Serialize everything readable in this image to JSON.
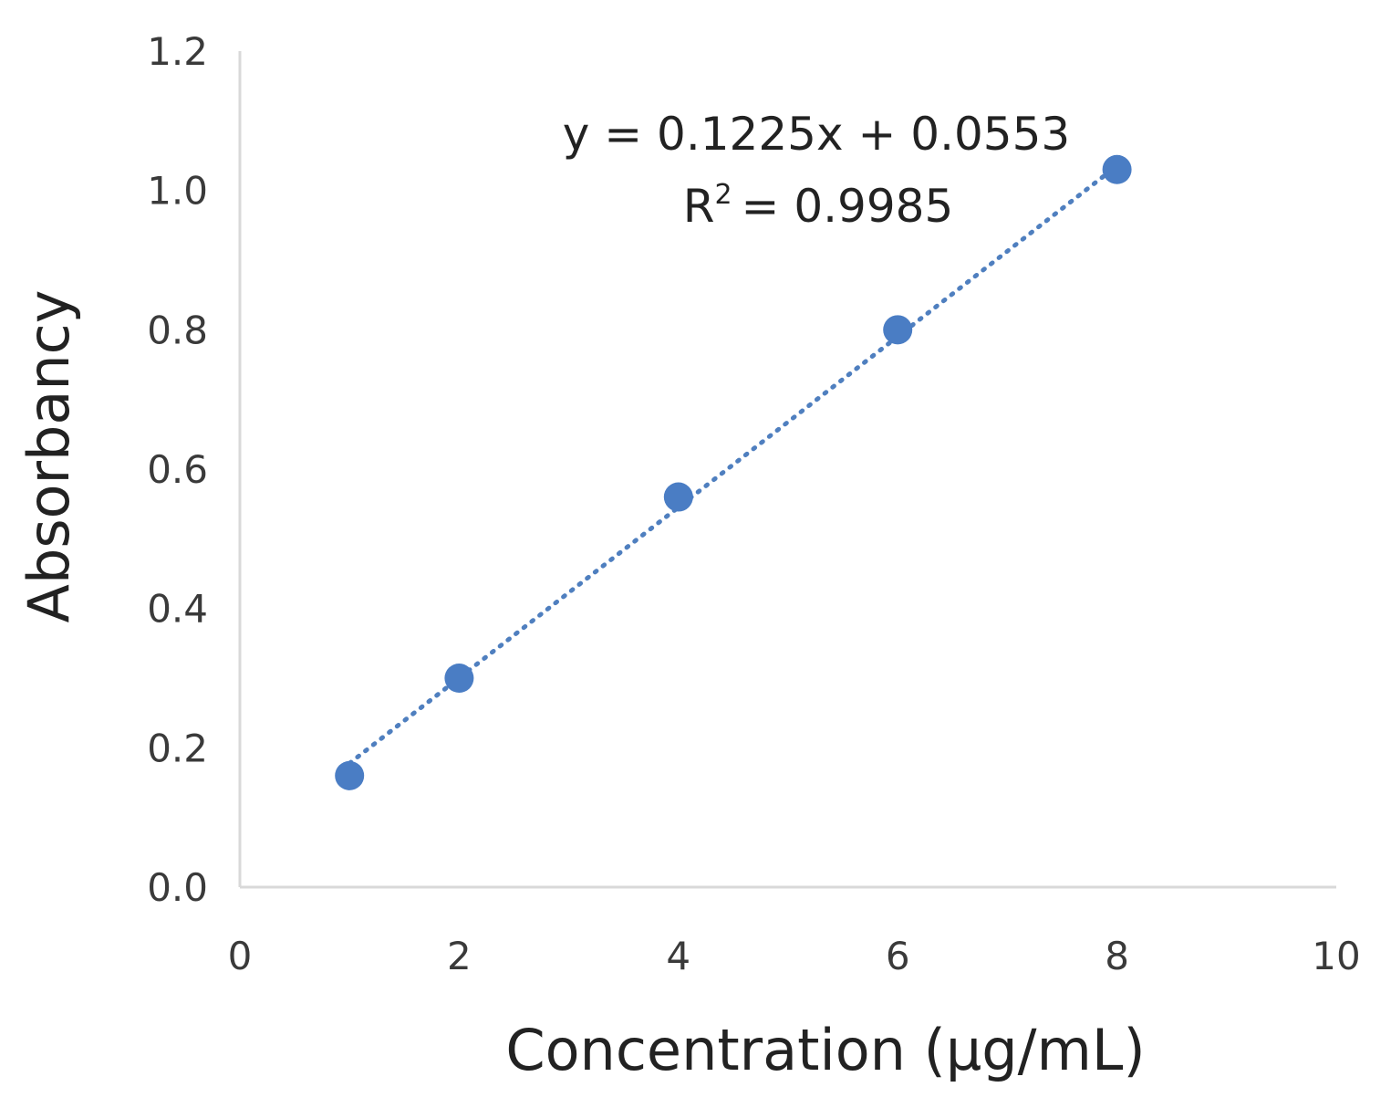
{
  "chart_data": {
    "type": "scatter",
    "title": "",
    "xlabel": "Concentration (µg/mL)",
    "ylabel": "Absorbancy",
    "xlim": [
      0,
      10
    ],
    "ylim": [
      0,
      1.2
    ],
    "x_ticks": [
      "0",
      "2",
      "4",
      "6",
      "8",
      "10"
    ],
    "y_ticks": [
      "0.0",
      "0.2",
      "0.4",
      "0.6",
      "0.8",
      "1.0",
      "1.2"
    ],
    "grid": false,
    "legend": "none",
    "marker_color": "#4a7dc4",
    "series": [
      {
        "x": [
          1,
          2,
          4,
          6,
          8
        ],
        "y": [
          0.16,
          0.3,
          0.56,
          0.8,
          1.03
        ]
      }
    ],
    "trendline": {
      "type": "linear",
      "style": "dotted",
      "slope": 0.1225,
      "intercept": 0.0553,
      "equation_line": "y = 0.1225x + 0.0553",
      "r_squared_prefix": "R",
      "r_squared_sup": "2",
      "r_squared_value": "= 0.9985"
    }
  }
}
